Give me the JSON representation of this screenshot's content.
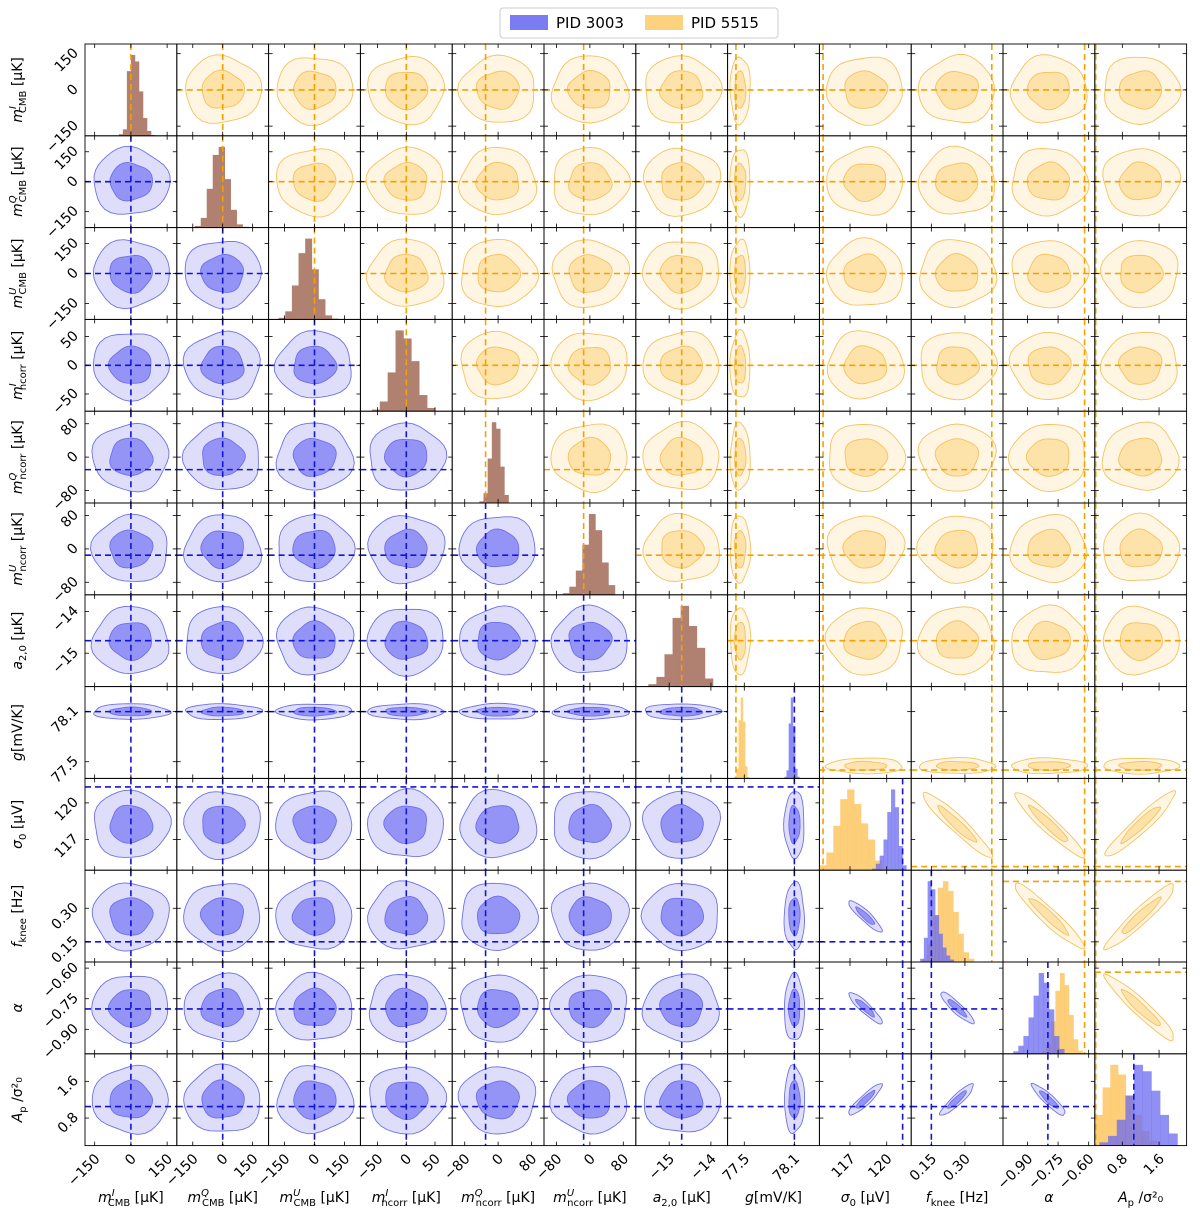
{
  "legend": {
    "items": [
      {
        "label": "PID 3003",
        "color": "#7b7bf2"
      },
      {
        "label": "PID 5515",
        "color": "#fdd27d"
      }
    ],
    "placement": "top-center"
  },
  "colors": {
    "pid3003_inner": "#8f8ff5",
    "pid3003_outer": "#dcdcfb",
    "pid3003_line": "#1414d6",
    "pid5515_inner": "#fde0a6",
    "pid5515_outer": "#fef4e1",
    "pid5515_line": "#f5a100",
    "overlap_hist": "#b08070"
  },
  "chart_data": {
    "type": "corner",
    "parameters": [
      {
        "key": "mI_cmb",
        "label_main": "m",
        "label_sup": "I",
        "label_sub": "CMB",
        "unit": "[µK]",
        "range": [
          -190,
          190
        ],
        "ticks": [
          "-150",
          "0",
          "150"
        ],
        "tick_values": [
          -150,
          0,
          150
        ],
        "truth": 0
      },
      {
        "key": "mQ_cmb",
        "label_main": "m",
        "label_sup": "Q",
        "label_sub": "CMB",
        "unit": "[µK]",
        "range": [
          -230,
          230
        ],
        "ticks": [
          "-150",
          "0",
          "150"
        ],
        "tick_values": [
          -150,
          0,
          150
        ],
        "truth": 0
      },
      {
        "key": "mU_cmb",
        "label_main": "m",
        "label_sup": "U",
        "label_sub": "CMB",
        "unit": "[µK]",
        "range": [
          -230,
          230
        ],
        "ticks": [
          "-150",
          "0",
          "150"
        ],
        "tick_values": [
          -150,
          0,
          150
        ],
        "truth": 0
      },
      {
        "key": "mI_ncorr",
        "label_main": "m",
        "label_sup": "I",
        "label_sub": "ncorr",
        "unit": "[µK]",
        "range": [
          -80,
          80
        ],
        "ticks": [
          "-50",
          "0",
          "50"
        ],
        "tick_values": [
          -50,
          0,
          50
        ],
        "truth": 0
      },
      {
        "key": "mQ_ncorr",
        "label_main": "m",
        "label_sup": "Q",
        "label_sub": "ncorr",
        "unit": "[µK]",
        "range": [
          -110,
          110
        ],
        "ticks": [
          "-80",
          "0",
          "80"
        ],
        "tick_values": [
          -80,
          0,
          80
        ],
        "truth": -30
      },
      {
        "key": "mU_ncorr",
        "label_main": "m",
        "label_sup": "U",
        "label_sub": "ncorr",
        "unit": "[µK]",
        "range": [
          -110,
          110
        ],
        "ticks": [
          "-80",
          "0",
          "80"
        ],
        "tick_values": [
          -80,
          0,
          80
        ],
        "truth": -15
      },
      {
        "key": "a20",
        "label_main": "a",
        "label_sup": "",
        "label_sub": "2,0",
        "unit": "[µK]",
        "range": [
          -15.8,
          -13.6
        ],
        "ticks": [
          "-15",
          "-14"
        ],
        "tick_values": [
          -15,
          -14
        ],
        "truth": -14.7
      },
      {
        "key": "g",
        "label_main": "g",
        "label_sup": "",
        "label_sub": "",
        "unit": "[mV/K]",
        "range": [
          77.3,
          78.4
        ],
        "ticks": [
          "77.5",
          "78.1"
        ],
        "tick_values": [
          77.5,
          78.1
        ],
        "truth3003": 78.1,
        "truth5515": 77.4
      },
      {
        "key": "sigma0",
        "label_main": "σ",
        "label_sup": "",
        "label_sub": "0",
        "unit": "[µV]",
        "range": [
          114.5,
          122.0
        ],
        "ticks": [
          "117",
          "120"
        ],
        "tick_values": [
          117,
          120
        ],
        "truth3003": 121.3,
        "truth5515": 114.8
      },
      {
        "key": "fknee",
        "label_main": "f",
        "label_sup": "",
        "label_sub": "knee",
        "unit": "[Hz]",
        "range": [
          0.06,
          0.47
        ],
        "ticks": [
          "0.15",
          "0.30"
        ],
        "tick_values": [
          0.15,
          0.3
        ],
        "truth3003": 0.15,
        "truth5515": 0.42
      },
      {
        "key": "alpha",
        "label_main": "α",
        "label_sup": "",
        "label_sub": "",
        "unit": "",
        "range": [
          -1.02,
          -0.57
        ],
        "ticks": [
          "-0.90",
          "-0.75",
          "-0.60"
        ],
        "tick_values": [
          -0.9,
          -0.75,
          -0.6
        ],
        "truth3003": -0.8,
        "truth5515": -0.62
      },
      {
        "key": "Ap",
        "label_main": "A",
        "label_sup": "",
        "label_sub": "p",
        "unit": "/σ²₀",
        "range": [
          0.2,
          2.2
        ],
        "ticks": [
          "0.8",
          "1.6"
        ],
        "tick_values": [
          0.8,
          1.6
        ],
        "truth3003": 1.05,
        "truth5515": 0.22
      }
    ],
    "series": [
      {
        "name": "PID 3003"
      },
      {
        "name": "PID 5515"
      }
    ],
    "histograms": [
      {
        "param": "mI_cmb",
        "overlap": [
          2,
          8,
          80,
          100,
          92,
          55,
          22,
          6,
          1
        ],
        "range": [
          -50,
          100
        ]
      },
      {
        "param": "mQ_cmb",
        "overlap": [
          2,
          12,
          48,
          90,
          100,
          60,
          22,
          4,
          1
        ],
        "range": [
          -140,
          130
        ]
      },
      {
        "param": "mU_cmb",
        "overlap": [
          2,
          10,
          42,
          82,
          100,
          62,
          25,
          5,
          1
        ],
        "range": [
          -180,
          120
        ]
      },
      {
        "param": "mI_ncorr",
        "overlap": [
          2,
          12,
          48,
          100,
          90,
          62,
          20,
          4
        ],
        "range": [
          -60,
          50
        ]
      },
      {
        "param": "mQ_ncorr",
        "overlap": [
          2,
          12,
          55,
          100,
          92,
          45,
          10
        ],
        "range": [
          -45,
          25
        ]
      },
      {
        "param": "mU_ncorr",
        "overlap": [
          2,
          10,
          30,
          62,
          100,
          80,
          40,
          12
        ],
        "range": [
          -65,
          60
        ]
      },
      {
        "param": "a20",
        "overlap": [
          3,
          12,
          40,
          85,
          100,
          75,
          48,
          10
        ],
        "range": [
          -15.5,
          -13.95
        ]
      },
      {
        "param": "g",
        "pid3003": [
          2,
          10,
          68,
          100,
          65,
          12,
          2
        ],
        "pid5515": [
          2,
          12,
          72,
          100,
          70,
          15,
          2
        ],
        "range3003": [
          77.98,
          78.16
        ],
        "range5515": [
          77.38,
          77.56
        ]
      },
      {
        "param": "sigma0",
        "pid3003": [
          2,
          8,
          18,
          38,
          72,
          100,
          78,
          30,
          6
        ],
        "pid5515": [
          6,
          22,
          55,
          88,
          100,
          82,
          58,
          38,
          12
        ],
        "range3003": [
          118.8,
          121.6
        ],
        "range5515": [
          114.5,
          119.6
        ]
      },
      {
        "param": "fknee",
        "pid3003": [
          4,
          30,
          100,
          90,
          58,
          35,
          18,
          8,
          3
        ],
        "pid5515": [
          3,
          22,
          58,
          92,
          100,
          88,
          62,
          35,
          12,
          4
        ],
        "range3003": [
          0.1,
          0.25
        ],
        "range5515": [
          0.11,
          0.34
        ]
      },
      {
        "param": "alpha",
        "pid3003": [
          3,
          10,
          22,
          45,
          72,
          100,
          88,
          55,
          22,
          6
        ],
        "pid5515": [
          3,
          12,
          40,
          78,
          100,
          85,
          48,
          18,
          4
        ],
        "range3003": [
          -0.97,
          -0.72
        ],
        "range5515": [
          -0.83,
          -0.63
        ]
      },
      {
        "param": "Ap",
        "pid3003": [
          4,
          12,
          32,
          62,
          100,
          92,
          68,
          38,
          15
        ],
        "pid5515": [
          38,
          72,
          100,
          88,
          62,
          38,
          18,
          6
        ],
        "range3003": [
          0.3,
          2.0
        ],
        "range5515": [
          0.2,
          1.55
        ]
      }
    ]
  }
}
